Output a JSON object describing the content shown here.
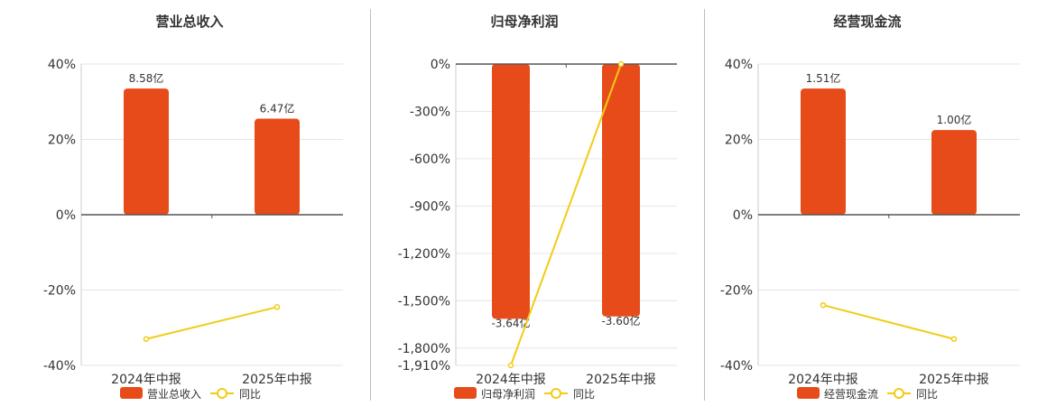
{
  "chart_data": [
    {
      "type": "bar",
      "title": "营业总收入",
      "categories": [
        "2024年中报",
        "2025年中报"
      ],
      "bar_labels": [
        "8.58亿",
        "6.47亿"
      ],
      "series": [
        {
          "name": "营业总收入",
          "type": "bar",
          "values": [
            33.5,
            25.5
          ],
          "axis": "percent"
        },
        {
          "name": "同比",
          "type": "line",
          "values": [
            -33.0,
            -24.5
          ],
          "axis": "percent"
        }
      ],
      "y_ticks": [
        "40%",
        "20%",
        "0%",
        "-20%",
        "-40%"
      ],
      "ylim": [
        -40,
        40
      ],
      "grid": true,
      "legend_placement": "bottom"
    },
    {
      "type": "bar",
      "title": "归母净利润",
      "categories": [
        "2024年中报",
        "2025年中报"
      ],
      "bar_labels": [
        "-3.64亿",
        "-3.60亿"
      ],
      "series": [
        {
          "name": "归母净利润",
          "type": "bar",
          "values": [
            -1615,
            -1600
          ],
          "axis": "percent"
        },
        {
          "name": "同比",
          "type": "line",
          "values": [
            -1910,
            0
          ],
          "axis": "percent"
        }
      ],
      "y_ticks": [
        "0%",
        "-300%",
        "-600%",
        "-900%",
        "-1,200%",
        "-1,500%",
        "-1,800%",
        "-1,910%"
      ],
      "ylim": [
        -1910,
        0
      ],
      "grid": true,
      "legend_placement": "bottom"
    },
    {
      "type": "bar",
      "title": "经营现金流",
      "categories": [
        "2024年中报",
        "2025年中报"
      ],
      "bar_labels": [
        "1.51亿",
        "1.00亿"
      ],
      "series": [
        {
          "name": "经营现金流",
          "type": "bar",
          "values": [
            33.5,
            22.5
          ],
          "axis": "percent"
        },
        {
          "name": "同比",
          "type": "line",
          "values": [
            -24.0,
            -33.0
          ],
          "axis": "percent"
        }
      ],
      "y_ticks": [
        "40%",
        "20%",
        "0%",
        "-20%",
        "-40%"
      ],
      "ylim": [
        -40,
        40
      ],
      "grid": true,
      "legend_placement": "bottom"
    }
  ],
  "colors": {
    "bar": "#e84b1a",
    "line": "#f1cc14",
    "grid": "#e6e6e6",
    "axis": "#555555",
    "text": "#333333"
  }
}
